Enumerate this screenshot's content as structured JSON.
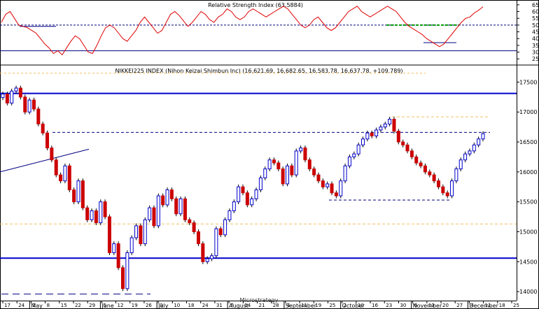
{
  "chart_data": [
    {
      "type": "line",
      "title": "Relative Strength Index (63.5884)",
      "ylim": [
        22,
        67
      ],
      "y_ticks": [
        "65",
        "60",
        "55",
        "50",
        "45",
        "40",
        "35",
        "30",
        "25"
      ],
      "y_tick_values": [
        65,
        60,
        55,
        50,
        45,
        40,
        35,
        30,
        25
      ],
      "reference_levels": [
        50,
        31
      ],
      "grid": false,
      "colors": {
        "line": "#e00000",
        "reference": "#000080",
        "support": "#009900",
        "trend": "#000080"
      },
      "series": [
        {
          "values": [
            52,
            58,
            60,
            55,
            50,
            49,
            48,
            46,
            44,
            40,
            36,
            33,
            29,
            31,
            28,
            33,
            38,
            42,
            40,
            35,
            30,
            29,
            35,
            42,
            48,
            50,
            48,
            44,
            40,
            38,
            42,
            46,
            52,
            56,
            52,
            48,
            44,
            46,
            52,
            58,
            60,
            57,
            53,
            49,
            52,
            56,
            60,
            58,
            54,
            52,
            56,
            58,
            62,
            60,
            56,
            54,
            56,
            60,
            62,
            60,
            58,
            56,
            58,
            60,
            62,
            64,
            62,
            58,
            54,
            50,
            48,
            50,
            54,
            56,
            52,
            48,
            46,
            48,
            52,
            56,
            60,
            62,
            64,
            60,
            58,
            56,
            58,
            60,
            62,
            64,
            62,
            60,
            56,
            52,
            49,
            47,
            45,
            43,
            40,
            38,
            36,
            34,
            36,
            40,
            44,
            48,
            52,
            55,
            56,
            59,
            61,
            63.6
          ]
        }
      ]
    },
    {
      "type": "candlestick",
      "title": "NIKKEI225 INDEX (Nihon Keizai Shimbun Inc) (16,621.69, 16,682.65, 16,583.78, 16,637.78, +109.789)",
      "ylim": [
        13850,
        17750
      ],
      "y_ticks": [
        "17500",
        "17000",
        "16500",
        "16000",
        "15500",
        "15000",
        "14500",
        "14000"
      ],
      "y_tick_values": [
        17500,
        17000,
        16500,
        16000,
        15500,
        15000,
        14500,
        14000
      ],
      "x_ticks": [
        "17",
        "24",
        "1",
        "8",
        "15",
        "22",
        "29",
        "5",
        "12",
        "19",
        "26",
        "3",
        "10",
        "18",
        "24",
        "31",
        "7",
        "14",
        "21",
        "28",
        "4",
        "11",
        "19",
        "25",
        "2",
        "10",
        "16",
        "23",
        "30",
        "6",
        "13",
        "20",
        "27",
        "4",
        "11",
        "18",
        "25"
      ],
      "month_labels": [
        "May",
        "June",
        "July",
        "August",
        "September",
        "October",
        "November",
        "December"
      ],
      "overlay_label": "Microstrategy",
      "horizontal_levels": [
        {
          "value": 17310,
          "style": "solid",
          "color": "#0000cc"
        },
        {
          "value": 14560,
          "style": "solid",
          "color": "#0000cc"
        },
        {
          "value": 16920,
          "style": "dashed",
          "color": "#f0c060"
        },
        {
          "value": 16660,
          "style": "dashed",
          "color": "#000080"
        },
        {
          "value": 15130,
          "style": "dashed",
          "color": "#f0c060"
        },
        {
          "value": 15530,
          "style": "dashed",
          "color": "#000080"
        },
        {
          "value": 13960,
          "style": "dashed",
          "color": "#000080"
        }
      ],
      "series": [
        {
          "values": [
            17300,
            17150,
            17350,
            17400,
            17250,
            17000,
            17200,
            17050,
            16800,
            16650,
            16400,
            16200,
            15950,
            15850,
            16100,
            15700,
            15500,
            15850,
            15400,
            15200,
            15350,
            15150,
            15500,
            15250,
            14650,
            14800,
            14400,
            14050,
            14650,
            14900,
            15100,
            14800,
            15200,
            15400,
            15100,
            15600,
            15450,
            15700,
            15550,
            15300,
            15550,
            15200,
            15150,
            15000,
            14800,
            14500,
            14550,
            14600,
            15050,
            14950,
            15200,
            15350,
            15500,
            15750,
            15650,
            15450,
            15550,
            15700,
            15900,
            16050,
            16200,
            16150,
            16050,
            15800,
            16100,
            15950,
            16350,
            16400,
            16200,
            16050,
            15950,
            15850,
            15750,
            15800,
            15650,
            15600,
            15850,
            16100,
            16250,
            16300,
            16450,
            16550,
            16650,
            16600,
            16700,
            16750,
            16800,
            16880,
            16680,
            16500,
            16450,
            16350,
            16250,
            16150,
            16100,
            16000,
            15950,
            15850,
            15750,
            15650,
            15600,
            15850,
            16050,
            16200,
            16300,
            16350,
            16450,
            16550,
            16638
          ]
        }
      ]
    }
  ]
}
